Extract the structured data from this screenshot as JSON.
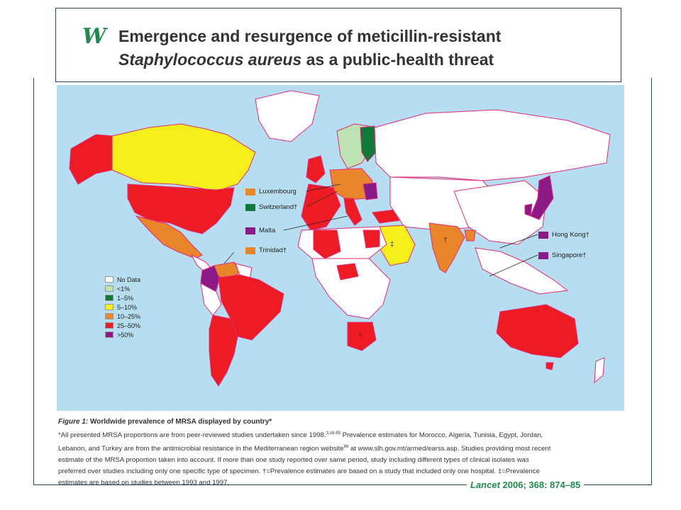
{
  "header": {
    "logo_icon": "lancet-w-logo",
    "title_line1": "Emergence and resurgence of meticillin-resistant",
    "title_line2_italic": "Staphylococcus aureus",
    "title_line2_rest": " as a public-health threat"
  },
  "map": {
    "legend": [
      {
        "label": "No Data",
        "color": "#ffffff"
      },
      {
        "label": "<1%",
        "color": "#bde3b5"
      },
      {
        "label": "1–5%",
        "color": "#0f7a3a"
      },
      {
        "label": "5–10%",
        "color": "#f6ef1c"
      },
      {
        "label": "10–25%",
        "color": "#e9852b"
      },
      {
        "label": "25–50%",
        "color": "#ed1c24"
      },
      {
        "label": ">50%",
        "color": "#8b1a86"
      }
    ],
    "callouts": [
      {
        "label": "Luxembourg",
        "color": "#e9852b"
      },
      {
        "label": "Switzerland†",
        "color": "#0f7a3a"
      },
      {
        "label": "Malta",
        "color": "#8b1a86"
      },
      {
        "label": "Trinidad†",
        "color": "#e9852b"
      },
      {
        "label": "Hong Kong†",
        "color": "#8b1a86"
      },
      {
        "label": "Singapore†",
        "color": "#8b1a86"
      }
    ],
    "country_marks": {
      "dagger": "†",
      "double_dagger": "‡"
    },
    "colors": {
      "ocean": "#b7ddf0",
      "border": "#e02a7a"
    }
  },
  "caption": {
    "figure_label": "Figure 1:",
    "figure_title": " Worldwide prevalence of MRSA displayed by country*",
    "line1": "*All presented MRSA proportions are from peer-reviewed studies undertaken since 1998.",
    "line1_refs": "3,16-85",
    "line1_rest": " Prevalence estimates for Morocco, Algeria, Tunisia, Egypt, Jordan,",
    "line2": "Lebanon, and Turkey are from the antimicrobial resistance in the Mediterranean region website",
    "line2_ref": "86",
    "line2_rest": " at www.slh.gov.mt/armed/earss.asp. Studies providing most recent",
    "line3": "estimate of the MRSA proportion taken into account. If more than one study reported over same period, study including different types of clinical isolates was",
    "line4": "preferred over studies including only one specific type of specimen. †=Prevalence estimates are based on a study that included only one hospital. ‡=Prevalence",
    "line5": "estimates are based on studies between 1993 and 1997."
  },
  "citation": {
    "journal": "Lancet",
    "rest": " 2006; 368: 874–85"
  }
}
